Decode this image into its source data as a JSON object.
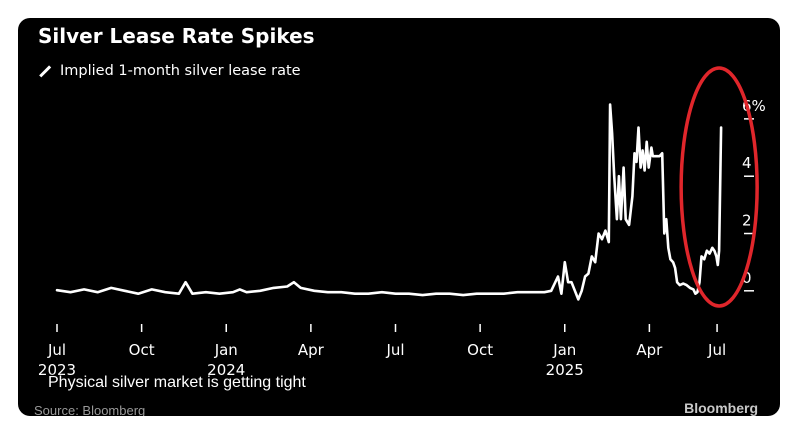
{
  "chart_data": {
    "type": "line",
    "title": "Silver Lease Rate Spikes",
    "series": [
      {
        "name": "Implied 1-month silver lease rate",
        "color": "#ffffff",
        "points": [
          [
            0,
            0.02
          ],
          [
            2,
            -0.05
          ],
          [
            4,
            0.05
          ],
          [
            6,
            -0.05
          ],
          [
            8,
            0.1
          ],
          [
            10,
            0.0
          ],
          [
            12,
            -0.1
          ],
          [
            14,
            0.05
          ],
          [
            16,
            -0.05
          ],
          [
            18,
            -0.1
          ],
          [
            19,
            0.3
          ],
          [
            20,
            -0.1
          ],
          [
            22,
            -0.05
          ],
          [
            24,
            -0.1
          ],
          [
            26,
            -0.05
          ],
          [
            27,
            0.05
          ],
          [
            28,
            -0.05
          ],
          [
            30,
            0.0
          ],
          [
            32,
            0.1
          ],
          [
            34,
            0.15
          ],
          [
            35,
            0.3
          ],
          [
            36,
            0.1
          ],
          [
            38,
            0.0
          ],
          [
            40,
            -0.05
          ],
          [
            42,
            -0.05
          ],
          [
            44,
            -0.1
          ],
          [
            46,
            -0.1
          ],
          [
            48,
            -0.05
          ],
          [
            50,
            -0.1
          ],
          [
            52,
            -0.1
          ],
          [
            54,
            -0.15
          ],
          [
            56,
            -0.1
          ],
          [
            58,
            -0.1
          ],
          [
            60,
            -0.15
          ],
          [
            62,
            -0.1
          ],
          [
            64,
            -0.1
          ],
          [
            66,
            -0.1
          ],
          [
            68,
            -0.05
          ],
          [
            70,
            -0.05
          ],
          [
            72,
            -0.05
          ],
          [
            73,
            0.0
          ],
          [
            74,
            0.5
          ],
          [
            74.5,
            -0.1
          ],
          [
            75,
            1.0
          ],
          [
            75.5,
            0.3
          ],
          [
            76,
            0.3
          ],
          [
            76.5,
            0.0
          ],
          [
            77,
            -0.3
          ],
          [
            77.5,
            0.0
          ],
          [
            78,
            0.5
          ],
          [
            78.5,
            0.6
          ],
          [
            79,
            1.2
          ],
          [
            79.5,
            1.0
          ],
          [
            80,
            2.0
          ],
          [
            80.5,
            1.8
          ],
          [
            81,
            2.1
          ],
          [
            81.5,
            1.7
          ],
          [
            81.7,
            6.5
          ],
          [
            82,
            5.5
          ],
          [
            82.3,
            4.0
          ],
          [
            82.7,
            2.5
          ],
          [
            83,
            4.0
          ],
          [
            83.3,
            2.5
          ],
          [
            83.7,
            4.3
          ],
          [
            84,
            2.5
          ],
          [
            84.5,
            2.3
          ],
          [
            85,
            3.3
          ],
          [
            85.3,
            4.8
          ],
          [
            85.6,
            4.5
          ],
          [
            85.9,
            5.7
          ],
          [
            86.2,
            4.3
          ],
          [
            86.5,
            4.9
          ],
          [
            86.8,
            4.2
          ],
          [
            87.1,
            5.2
          ],
          [
            87.4,
            4.3
          ],
          [
            87.8,
            5.0
          ],
          [
            88,
            4.7
          ],
          [
            88.5,
            4.7
          ],
          [
            89,
            4.7
          ],
          [
            89.4,
            4.8
          ],
          [
            89.7,
            2.0
          ],
          [
            90,
            2.5
          ],
          [
            90.3,
            1.5
          ],
          [
            90.6,
            1.1
          ],
          [
            91,
            1.0
          ],
          [
            91.3,
            0.8
          ],
          [
            91.6,
            0.3
          ],
          [
            92,
            0.2
          ],
          [
            92.5,
            0.25
          ],
          [
            93,
            0.2
          ],
          [
            93.5,
            0.1
          ],
          [
            94,
            0.05
          ],
          [
            94.3,
            -0.1
          ],
          [
            94.6,
            -0.05
          ],
          [
            94.9,
            0.3
          ],
          [
            95.2,
            1.2
          ],
          [
            95.6,
            1.1
          ],
          [
            96,
            1.4
          ],
          [
            96.4,
            1.3
          ],
          [
            96.8,
            1.5
          ],
          [
            97.1,
            1.4
          ],
          [
            97.4,
            1.2
          ],
          [
            97.6,
            0.9
          ],
          [
            97.8,
            1.4
          ],
          [
            98.1,
            5.7
          ]
        ]
      }
    ],
    "x_ticks": [
      {
        "pos": 0,
        "label": "Jul",
        "sublabel": "2023"
      },
      {
        "pos": 12.5,
        "label": "Oct",
        "sublabel": ""
      },
      {
        "pos": 25,
        "label": "Jan",
        "sublabel": "2024"
      },
      {
        "pos": 37.5,
        "label": "Apr",
        "sublabel": ""
      },
      {
        "pos": 50,
        "label": "Jul",
        "sublabel": ""
      },
      {
        "pos": 62.5,
        "label": "Oct",
        "sublabel": ""
      },
      {
        "pos": 75,
        "label": "Jan",
        "sublabel": "2025"
      },
      {
        "pos": 87.5,
        "label": "Apr",
        "sublabel": ""
      },
      {
        "pos": 97.5,
        "label": "Jul",
        "sublabel": ""
      }
    ],
    "y_ticks": [
      {
        "value": 6,
        "label": "6%"
      },
      {
        "value": 4,
        "label": "4"
      },
      {
        "value": 2,
        "label": "2"
      },
      {
        "value": 0,
        "label": "0"
      }
    ],
    "xlim": [
      0,
      100
    ],
    "ylim": [
      -0.6,
      6.8
    ],
    "annotation": {
      "type": "circle",
      "color": "#e0262b",
      "label": "recent spike highlighted"
    }
  },
  "header": {
    "title": "Silver Lease Rate Spikes",
    "legend": "Implied 1-month silver lease rate"
  },
  "footer": {
    "caption": "Physical silver market is getting tight",
    "source": "Source: Bloomberg",
    "brand": "Bloomberg"
  }
}
